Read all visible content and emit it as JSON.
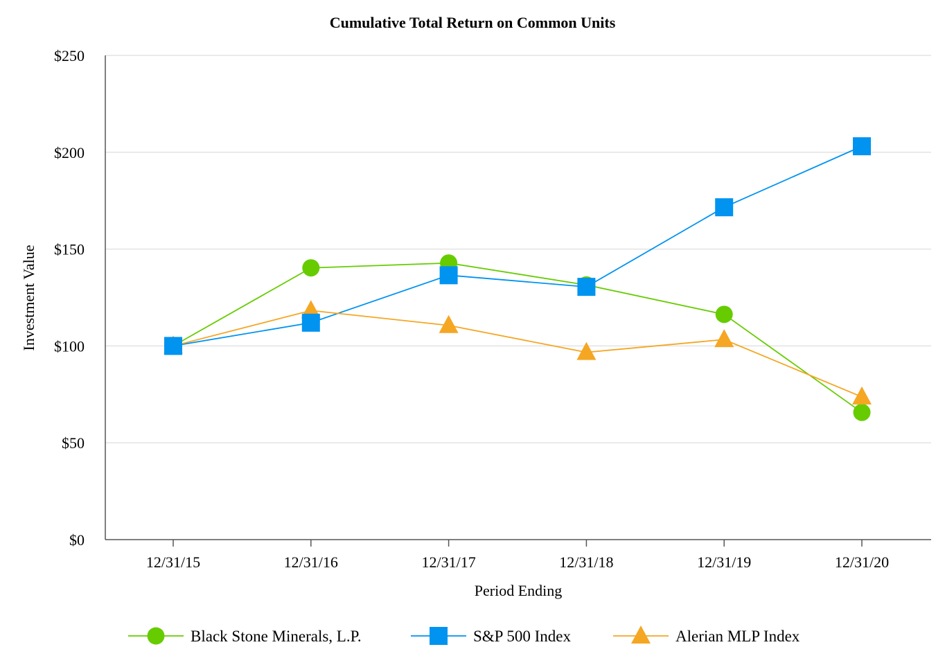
{
  "chart_data": {
    "type": "line",
    "title": "Cumulative Total Return on Common Units",
    "xlabel": "Period Ending",
    "ylabel": "Investment Value",
    "categories": [
      "12/31/15",
      "12/31/16",
      "12/31/17",
      "12/31/18",
      "12/31/19",
      "12/31/20"
    ],
    "ylim": [
      0,
      250
    ],
    "yticks": [
      0,
      50,
      100,
      150,
      200,
      250
    ],
    "ytick_labels": [
      "$0",
      "$50",
      "$100",
      "$150",
      "$200",
      "$250"
    ],
    "grid": true,
    "legend_position": "bottom",
    "series": [
      {
        "name": "Black Stone Minerals, L.P.",
        "marker": "circle",
        "color": "#66cc00",
        "values": [
          100,
          140.3,
          142.8,
          131.5,
          116.3,
          65.7
        ]
      },
      {
        "name": "S&P 500 Index",
        "marker": "square",
        "color": "#0093f0",
        "values": [
          100,
          112,
          136.5,
          130.5,
          171.6,
          203.1
        ]
      },
      {
        "name": "Alerian MLP Index",
        "marker": "triangle",
        "color": "#f5a623",
        "values": [
          100,
          118.3,
          110.6,
          96.7,
          103.3,
          73.7
        ]
      }
    ]
  }
}
